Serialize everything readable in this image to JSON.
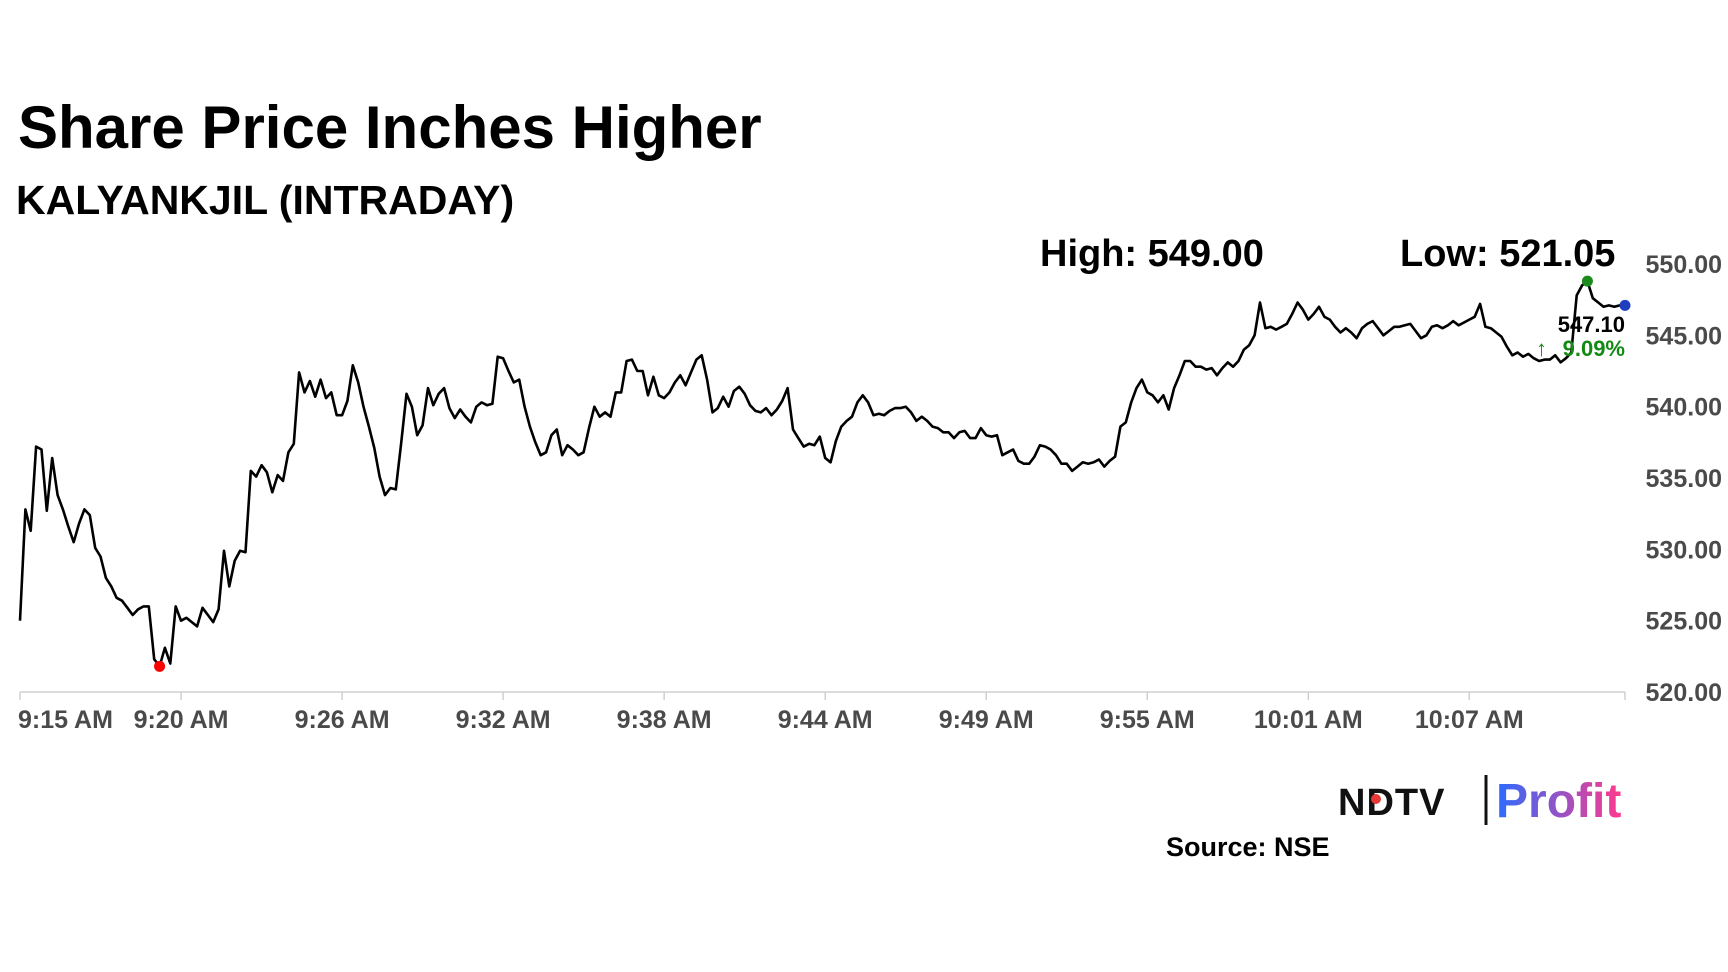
{
  "chart_data": {
    "type": "line",
    "title": "Share Price Inches Higher",
    "subtitle": "KALYANKJIL (INTRADAY)",
    "high_label": "High: 549.00",
    "low_label": "Low: 521.05",
    "last_price": "547.10",
    "change": "9.09%",
    "source": "Source: NSE",
    "brand_left": "NDTV",
    "brand_right": "Profit",
    "ylim": [
      520,
      550
    ],
    "y_ticks": [
      550,
      545,
      540,
      535,
      530,
      525,
      520
    ],
    "y_tick_labels": [
      "550.00",
      "545.00",
      "540.00",
      "535.00",
      "530.00",
      "525.00",
      "520.00"
    ],
    "x_tick_labels": [
      "9:15 AM",
      "9:20 AM",
      "9:26 AM",
      "9:32 AM",
      "9:38 AM",
      "9:44 AM",
      "9:49 AM",
      "9:55 AM",
      "10:01 AM",
      "10:07 AM"
    ],
    "x_tick_index": [
      0,
      30,
      60,
      90,
      120,
      150,
      180,
      210,
      240,
      270
    ],
    "x_count": 300,
    "series": [
      {
        "values": [
          525.0,
          532.8,
          531.3,
          537.2,
          537.0,
          532.7,
          536.4,
          533.8,
          532.8,
          531.6,
          530.5,
          531.8,
          532.8,
          532.4,
          530.1,
          529.5,
          528.0,
          527.4,
          526.6,
          526.4,
          525.9,
          525.4,
          525.8,
          526.0,
          526.0,
          522.3,
          521.8,
          523.1,
          522.0,
          526.0,
          525.0,
          525.2,
          524.9,
          524.6,
          525.9,
          525.4,
          524.9,
          525.8,
          529.9,
          527.4,
          529.2,
          529.9,
          529.8,
          535.5,
          535.1,
          535.9,
          535.4,
          534.0,
          535.2,
          534.8,
          536.8,
          537.4,
          542.4,
          541.0,
          541.8,
          540.7,
          541.9,
          540.6,
          541.0,
          539.4,
          539.4,
          540.4,
          542.9,
          541.7,
          540.0,
          538.6,
          537.1,
          535.1,
          533.8,
          534.3,
          534.2,
          537.4,
          540.9,
          540.0,
          538.0,
          538.7,
          541.3,
          540.1,
          540.9,
          541.3,
          539.9,
          539.2,
          539.8,
          539.3,
          538.9,
          540.0,
          540.3,
          540.1,
          540.2,
          543.5,
          543.4,
          542.5,
          541.7,
          541.9,
          540.0,
          538.6,
          537.5,
          536.6,
          536.8,
          538.0,
          538.4,
          536.6,
          537.3,
          537.0,
          536.6,
          536.8,
          538.5,
          540.0,
          539.3,
          539.6,
          539.3,
          541.0,
          541.0,
          543.2,
          543.3,
          542.5,
          542.5,
          540.8,
          542.1,
          540.8,
          540.6,
          541.0,
          541.7,
          542.2,
          541.5,
          542.4,
          543.3,
          543.6,
          541.9,
          539.6,
          539.9,
          540.7,
          540.0,
          541.1,
          541.4,
          540.9,
          540.1,
          539.7,
          539.6,
          539.9,
          539.4,
          539.8,
          540.4,
          541.3,
          538.4,
          537.8,
          537.2,
          537.4,
          537.3,
          537.9,
          536.4,
          536.1,
          537.6,
          538.6,
          539.0,
          539.3,
          540.3,
          540.8,
          540.3,
          539.4,
          539.5,
          539.4,
          539.7,
          539.9,
          539.9,
          540.0,
          539.6,
          539.0,
          539.3,
          539.0,
          538.6,
          538.5,
          538.2,
          538.2,
          537.8,
          538.2,
          538.3,
          537.8,
          537.8,
          538.5,
          538.0,
          537.9,
          538.0,
          536.6,
          536.8,
          537.0,
          536.2,
          536.0,
          536.0,
          536.5,
          537.3,
          537.2,
          537.0,
          536.6,
          536.0,
          536.0,
          535.5,
          535.8,
          536.1,
          536.0,
          536.1,
          536.3,
          535.8,
          536.2,
          536.5,
          538.6,
          538.9,
          540.3,
          541.3,
          541.9,
          541.0,
          540.8,
          540.3,
          540.8,
          539.8,
          541.3,
          542.2,
          543.2,
          543.2,
          542.8,
          542.8,
          542.6,
          542.7,
          542.2,
          542.7,
          543.1,
          542.8,
          543.2,
          544.0,
          544.3,
          545.0,
          547.3,
          545.5,
          545.6,
          545.4,
          545.6,
          545.8,
          546.5,
          547.3,
          546.8,
          546.1,
          546.5,
          547.0,
          546.3,
          546.1,
          545.6,
          545.2,
          545.5,
          545.2,
          544.8,
          545.5,
          545.8,
          546.0,
          545.5,
          545.0,
          545.3,
          545.6,
          545.6,
          545.7,
          545.8,
          545.3,
          544.8,
          545.0,
          545.6,
          545.7,
          545.5,
          545.7,
          546.0,
          545.7,
          545.9,
          546.1,
          546.3,
          547.2,
          545.6,
          545.5,
          545.2,
          544.9,
          544.2,
          543.6,
          543.8,
          543.5,
          543.7,
          543.4,
          543.2,
          543.3,
          543.3,
          543.6,
          543.1,
          543.4,
          543.8,
          547.8,
          548.5,
          548.8,
          547.6,
          547.3,
          547.0,
          547.1,
          547.0,
          547.1,
          547.1
        ]
      }
    ],
    "low_index": 26,
    "high_index": 292,
    "last_index": 299,
    "colors": {
      "line": "#000000",
      "low_marker": "#ff0000",
      "high_marker": "#1a8a1a",
      "last_marker": "#1f3fbf",
      "change_text": "#138a13",
      "axis": "#d0d0d0",
      "tick_text": "#4a4a4a",
      "brand_gradient_start": "#2a6cff",
      "brand_gradient_end": "#ff3a8c",
      "brand_dot": "#e53935"
    }
  }
}
